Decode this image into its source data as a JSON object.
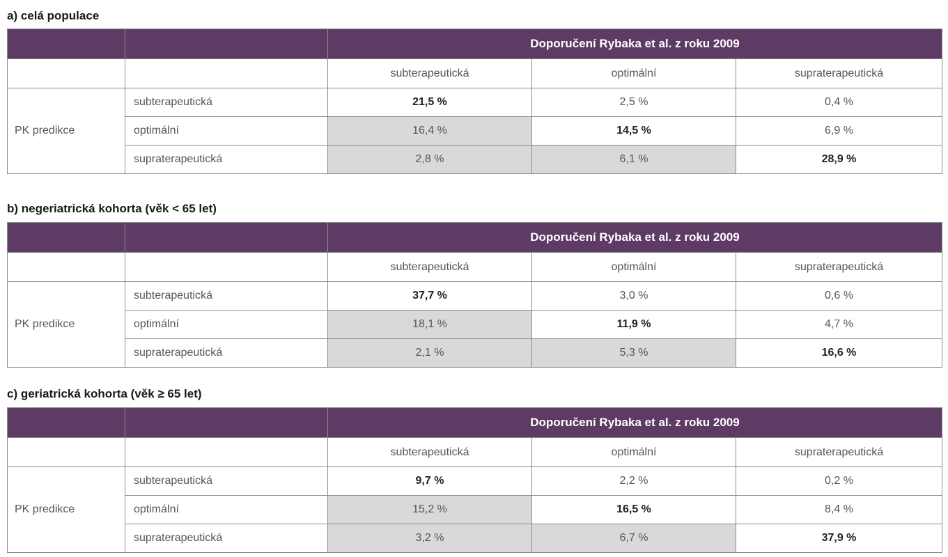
{
  "sections": [
    {
      "title": "a) celá populace",
      "header": "Doporučení Rybaka et al. z roku 2009",
      "columns": [
        "subterapeutická",
        "optimální",
        "supraterapeutická"
      ],
      "row_group": "PK predikce",
      "rows": [
        {
          "label": "subterapeutická",
          "values": [
            "21,5 %",
            "2,5 %",
            "0,4 %"
          ]
        },
        {
          "label": "optimální",
          "values": [
            "16,4 %",
            "14,5 %",
            "6,9 %"
          ]
        },
        {
          "label": "supraterapeutická",
          "values": [
            "2,8 %",
            "6,1 %",
            "28,9 %"
          ]
        }
      ]
    },
    {
      "title": "b) negeriatrická kohorta (věk < 65 let)",
      "header": "Doporučení Rybaka et al. z roku 2009",
      "columns": [
        "subterapeutická",
        "optimální",
        "supraterapeutická"
      ],
      "row_group": "PK predikce",
      "rows": [
        {
          "label": "subterapeutická",
          "values": [
            "37,7 %",
            "3,0 %",
            "0,6 %"
          ]
        },
        {
          "label": "optimální",
          "values": [
            "18,1 %",
            "11,9 %",
            "4,7 %"
          ]
        },
        {
          "label": "supraterapeutická",
          "values": [
            "2,1 %",
            "5,3 %",
            "16,6 %"
          ]
        }
      ]
    },
    {
      "title": "c) geriatrická kohorta (věk ≥ 65 let)",
      "header": "Doporučení Rybaka et al. z roku 2009",
      "columns": [
        "subterapeutická",
        "optimální",
        "supraterapeutická"
      ],
      "row_group": "PK predikce",
      "rows": [
        {
          "label": "subterapeutická",
          "values": [
            "9,7 %",
            "2,2 %",
            "0,2 %"
          ]
        },
        {
          "label": "optimální",
          "values": [
            "15,2 %",
            "16,5 %",
            "8,4 %"
          ]
        },
        {
          "label": "supraterapeutická",
          "values": [
            "3,2 %",
            "6,7 %",
            "37,9 %"
          ]
        }
      ]
    }
  ],
  "colors": {
    "header_bg": "#5d3b64",
    "shade_bg": "#d9d9d9",
    "border": "#8a8a8a"
  }
}
